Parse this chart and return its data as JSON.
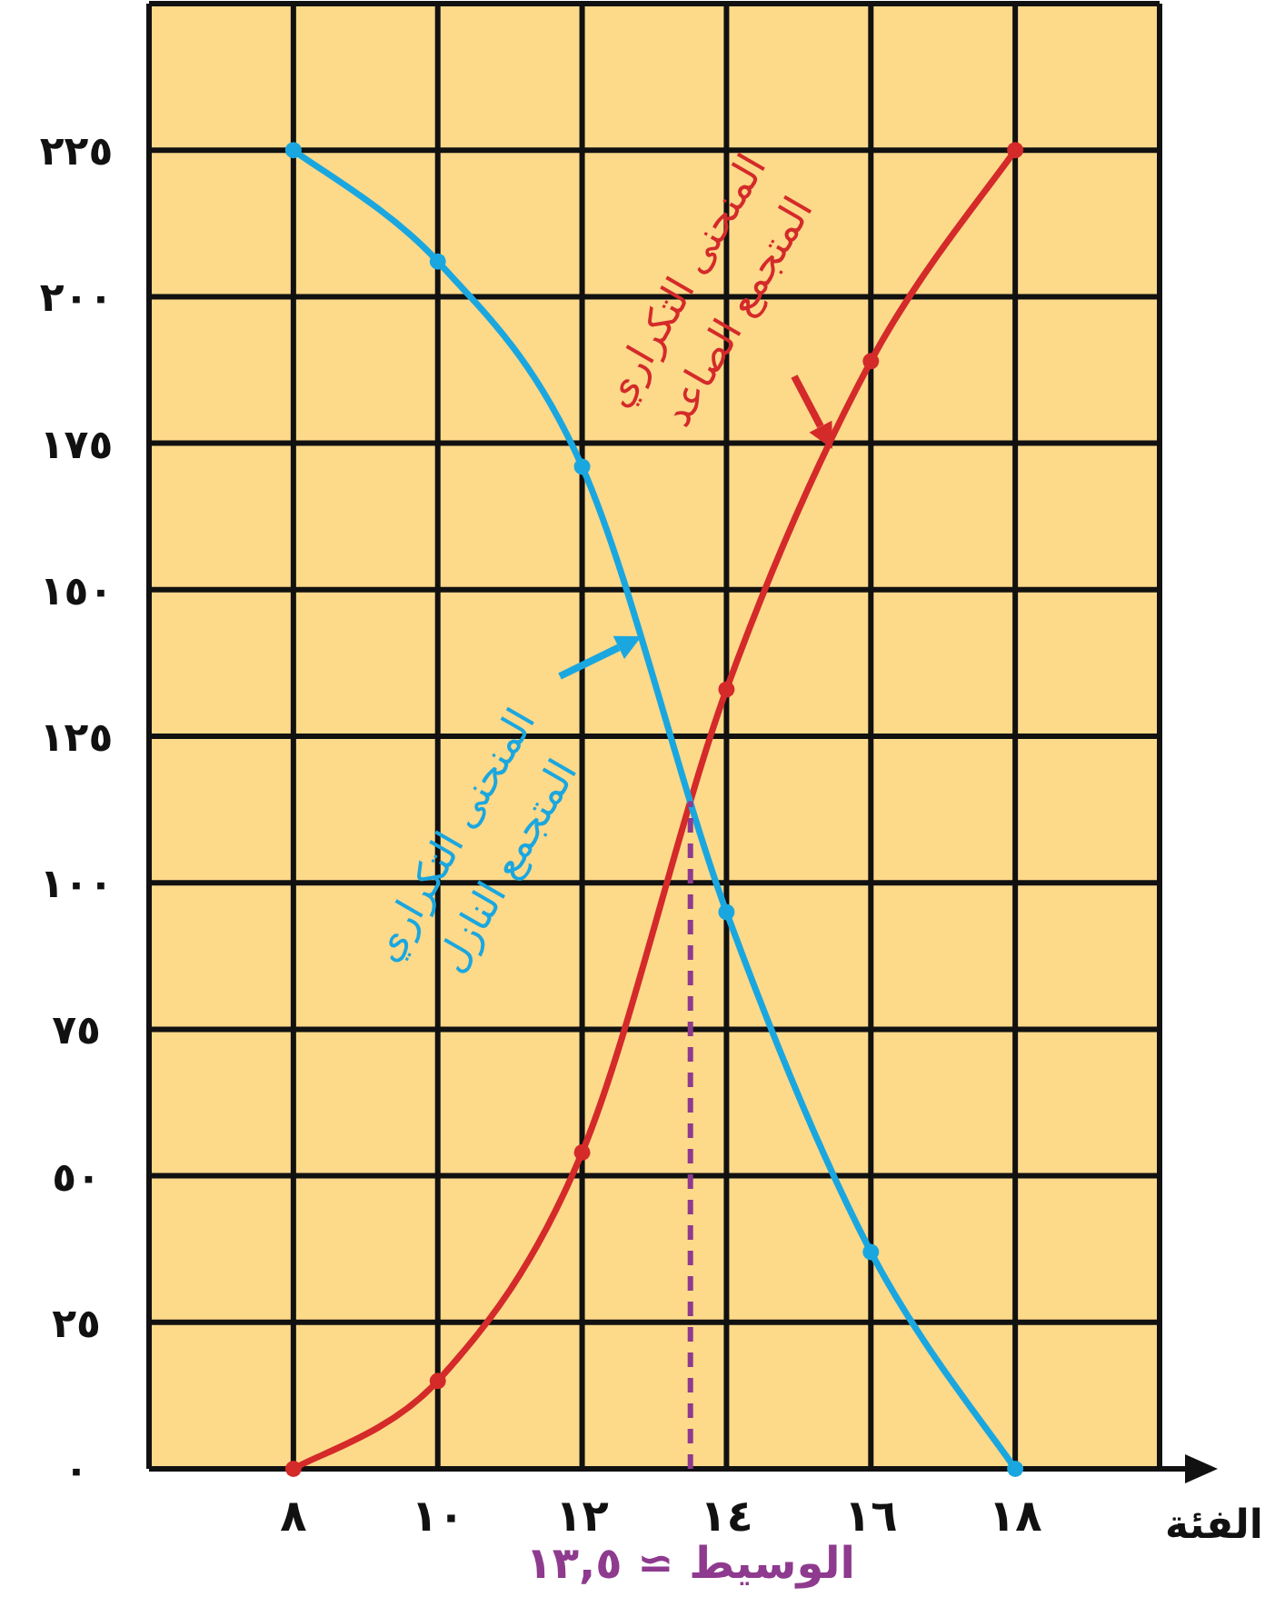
{
  "chart_data": {
    "type": "line",
    "xlabel": "الفئة",
    "xlim": [
      6,
      20
    ],
    "ylim": [
      0,
      250
    ],
    "xticks": [
      {
        "value": 6,
        "label": null
      },
      {
        "value": 8,
        "label": "٨"
      },
      {
        "value": 10,
        "label": "١٠"
      },
      {
        "value": 12,
        "label": "١٢"
      },
      {
        "value": 14,
        "label": "١٤"
      },
      {
        "value": 16,
        "label": "١٦"
      },
      {
        "value": 18,
        "label": "١٨"
      },
      {
        "value": 20,
        "label": null
      }
    ],
    "yticks": [
      {
        "value": 0,
        "label": "٠"
      },
      {
        "value": 25,
        "label": "٢٥"
      },
      {
        "value": 50,
        "label": "٥٠"
      },
      {
        "value": 75,
        "label": "٧٥"
      },
      {
        "value": 100,
        "label": "١٠٠"
      },
      {
        "value": 125,
        "label": "١٢٥"
      },
      {
        "value": 150,
        "label": "١٥٠"
      },
      {
        "value": 175,
        "label": "١٧٥"
      },
      {
        "value": 200,
        "label": "٢٠٠"
      },
      {
        "value": 225,
        "label": "٢٢٥"
      },
      {
        "value": 250,
        "label": null
      }
    ],
    "grid": true,
    "marker": "circle",
    "line_style": "solid",
    "series": [
      {
        "name": "المنحنى التكراري المتجمع الصاعد",
        "color": "#d42a2a",
        "x": [
          8,
          10,
          12,
          14,
          16,
          18
        ],
        "values": [
          0,
          15,
          54,
          133,
          189,
          225
        ]
      },
      {
        "name": "المنحنى التكراري المتجمع النازل",
        "color": "#1aa7e0",
        "x": [
          8,
          10,
          12,
          14,
          16,
          18
        ],
        "values": [
          225,
          206,
          171,
          95,
          37,
          0
        ]
      }
    ],
    "ref_lines": [
      {
        "axis": "x",
        "value": 13.5,
        "label": "الوسيط ≃ ١٣,٥",
        "color": "#8e3a8e",
        "line_style": "dashed"
      }
    ]
  }
}
